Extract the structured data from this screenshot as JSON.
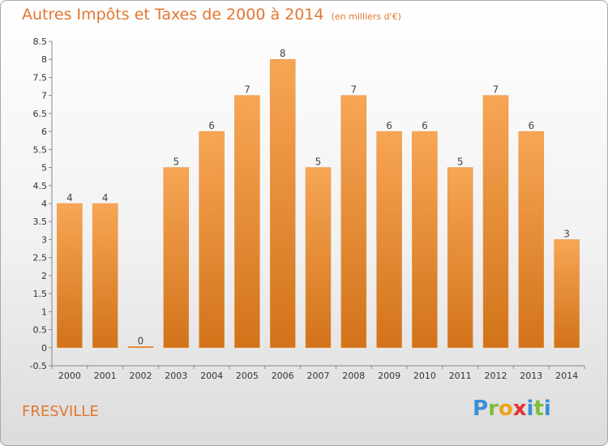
{
  "title": "Autres Impôts et Taxes de 2000 à 2014",
  "subtitle": "(en milliers d'€)",
  "commune": "FRESVILLE",
  "logo": {
    "letters": [
      "P",
      "r",
      "o",
      "x",
      "i",
      "t",
      "i"
    ],
    "colors": [
      "#3a8fd6",
      "#7cbe3a",
      "#f0a318",
      "#e4322b",
      "#3a8fd6",
      "#7cbe3a",
      "#3a8fd6"
    ]
  },
  "colors": {
    "bar_top": "#f7a655",
    "bar_bottom": "#d2731a",
    "title": "#e2762f",
    "axis": "#888888"
  },
  "chart_data": {
    "type": "bar",
    "categories": [
      "2000",
      "2001",
      "2002",
      "2003",
      "2004",
      "2005",
      "2006",
      "2007",
      "2008",
      "2009",
      "2010",
      "2011",
      "2012",
      "2013",
      "2014"
    ],
    "values": [
      4,
      4,
      0,
      5,
      6,
      7,
      8,
      5,
      7,
      6,
      6,
      5,
      7,
      6,
      3
    ],
    "data_labels": [
      "4",
      "4",
      "0",
      "5",
      "6",
      "7",
      "8",
      "5",
      "7",
      "6",
      "6",
      "5",
      "7",
      "6",
      "3"
    ],
    "title": "Autres Impôts et Taxes de 2000 à 2014",
    "xlabel": "",
    "ylabel": "",
    "ylim": [
      -0.5,
      8.5
    ],
    "y_ticks": [
      "-0.5",
      "0",
      "0.5",
      "1",
      "1.5",
      "2",
      "2.5",
      "3",
      "3.5",
      "4",
      "4.5",
      "5",
      "5.5",
      "6",
      "6.5",
      "7",
      "7.5",
      "8",
      "8.5"
    ],
    "y_tick_values": [
      -0.5,
      0,
      0.5,
      1,
      1.5,
      2,
      2.5,
      3,
      3.5,
      4,
      4.5,
      5,
      5.5,
      6,
      6.5,
      7,
      7.5,
      8,
      8.5
    ],
    "grid": false
  }
}
